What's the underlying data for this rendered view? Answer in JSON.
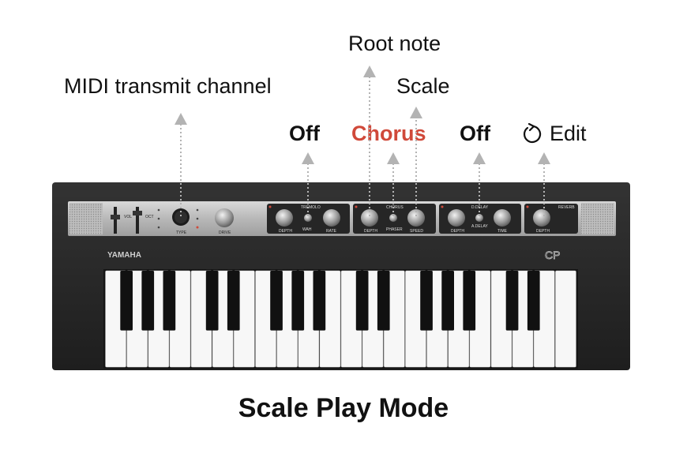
{
  "labels": {
    "root_note": "Root note",
    "scale": "Scale",
    "midi_channel": "MIDI transmit channel",
    "off_left": "Off",
    "chorus": "Chorus",
    "off_right": "Off",
    "edit": "Edit"
  },
  "caption": "Scale Play Mode",
  "keyboard": {
    "brand": "YAMAHA",
    "logo": "CP",
    "panel_labels": {
      "tremolo": "TREMOLO",
      "wah": "WAH",
      "depth1": "DEPTH",
      "rate": "RATE",
      "chorus": "CHORUS",
      "phaser": "PHASER",
      "depth2": "DEPTH",
      "speed": "SPEED",
      "ddelay": "D.DELAY",
      "adelay": "A.DELAY",
      "depth3": "DEPTH",
      "time": "TIME",
      "reverb": "REVERB",
      "depth4": "DEPTH",
      "vol": "VOL",
      "oct": "OCT",
      "type": "TYPE",
      "drive": "DRIVE"
    },
    "white_key_count": 22
  },
  "colors": {
    "accent": "#d0493a",
    "text": "#111111",
    "arrow": "#b3b3b3",
    "keyboard_body": "#2b2b2b"
  },
  "icons": {
    "edit": "rotate-arrow-icon"
  }
}
